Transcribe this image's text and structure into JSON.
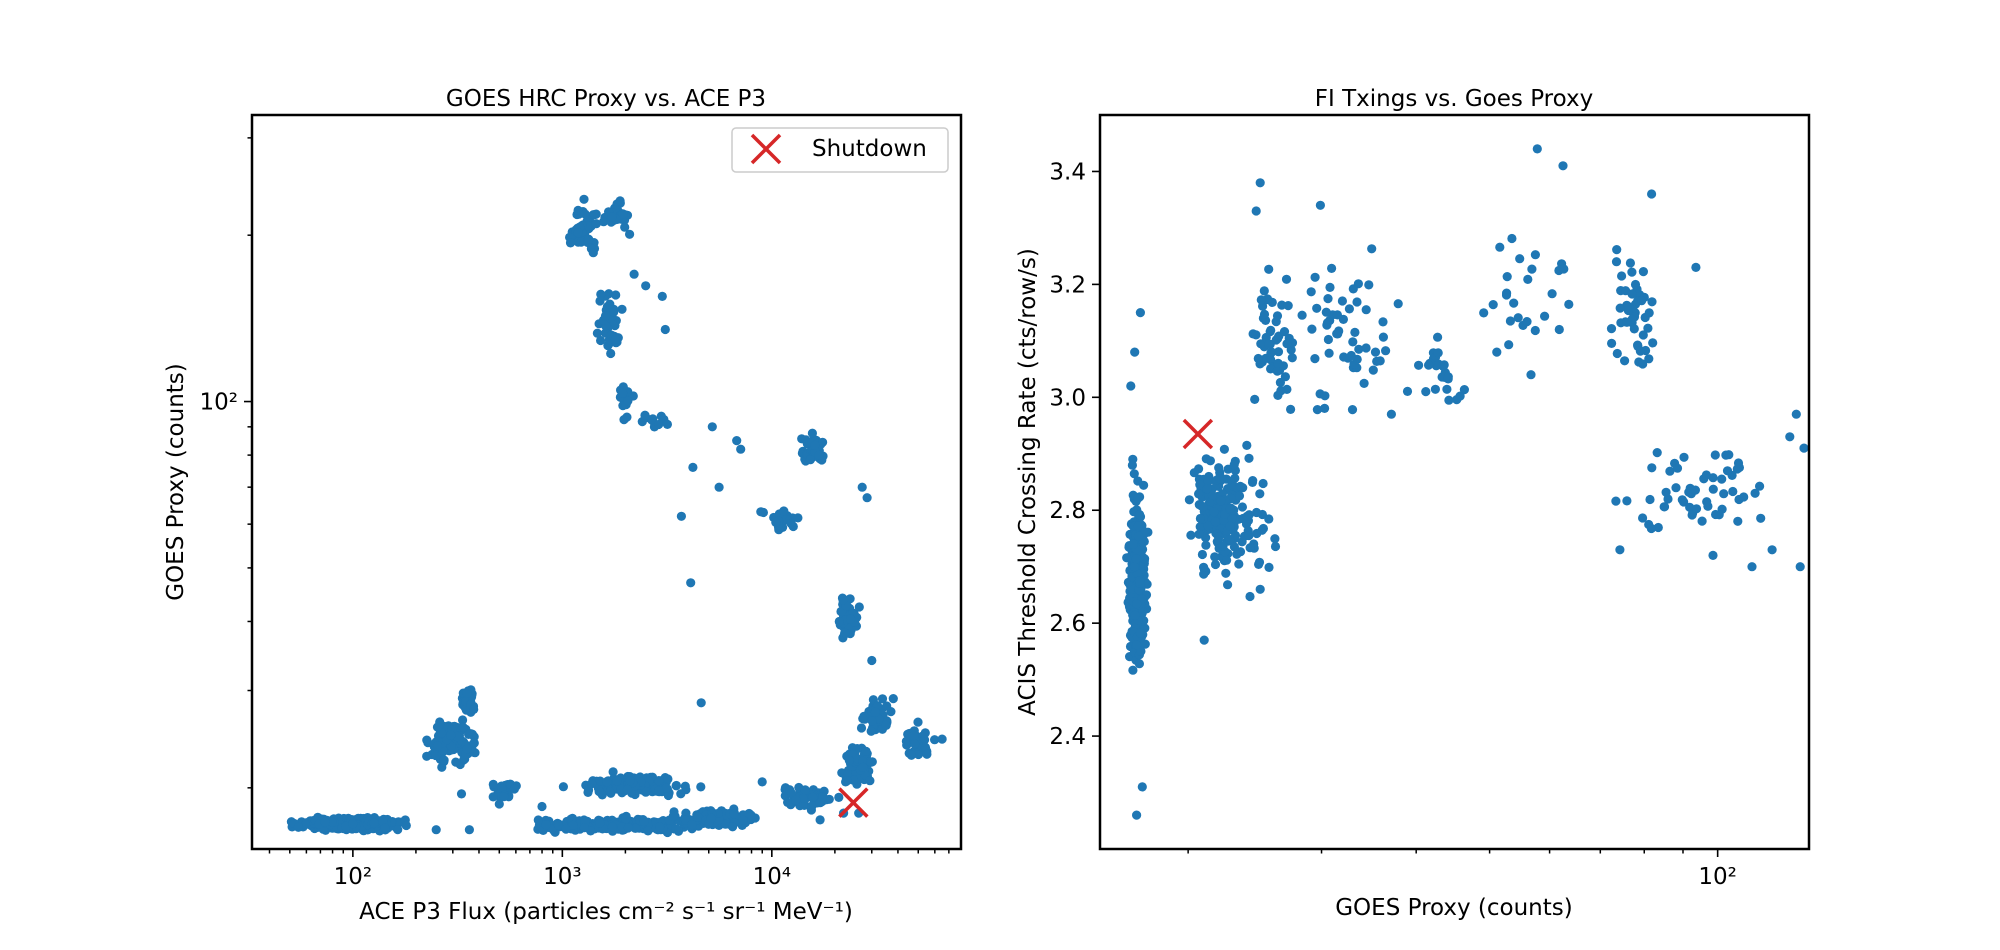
{
  "chart_data": [
    {
      "type": "scatter",
      "title": "GOES HRC Proxy vs. ACE P3",
      "xlabel": "ACE P3 Flux (particles cm⁻² s⁻¹ sr⁻¹ MeV⁻¹)",
      "ylabel": "GOES Proxy (counts)",
      "xscale": "log",
      "yscale": "log",
      "xlim": [
        33,
        80000
      ],
      "ylim": [
        15.5,
        330
      ],
      "xticks": [
        {
          "value": 100,
          "label": "10²"
        },
        {
          "value": 1000,
          "label": "10³"
        },
        {
          "value": 10000,
          "label": "10⁴"
        }
      ],
      "yticks": [
        {
          "value": 100,
          "label": "10²"
        }
      ],
      "grid": false,
      "legend": {
        "placement": "top-right",
        "entries": [
          "Shutdown"
        ]
      },
      "colors": {
        "points": "#1f77b4",
        "shutdown": "#d62728"
      },
      "series": [
        {
          "marker": "dot",
          "clusters": [
            {
              "x": [
                45,
                210
              ],
              "y": [
                16.6,
                17.8
              ],
              "n": 420
            },
            {
              "x": [
                210,
                420
              ],
              "y": [
                21,
                28
              ],
              "n": 110
            },
            {
              "x": [
                320,
                400
              ],
              "y": [
                26,
                32
              ],
              "n": 35
            },
            {
              "x": [
                400,
                700
              ],
              "y": [
                18.5,
                21
              ],
              "n": 20
            },
            {
              "x": [
                520,
                7000
              ],
              "y": [
                16.5,
                17.8
              ],
              "n": 260
            },
            {
              "x": [
                3000,
                10000
              ],
              "y": [
                16.8,
                18.5
              ],
              "n": 140
            },
            {
              "x": [
                900,
                5000
              ],
              "y": [
                19,
                21.5
              ],
              "n": 150
            },
            {
              "x": [
                10000,
                22000
              ],
              "y": [
                18,
                20.5
              ],
              "n": 60
            },
            {
              "x": [
                20000,
                33000
              ],
              "y": [
                19.5,
                25
              ],
              "n": 90
            },
            {
              "x": [
                24000,
                40000
              ],
              "y": [
                24,
                30
              ],
              "n": 40
            },
            {
              "x": [
                40000,
                62000
              ],
              "y": [
                22,
                27
              ],
              "n": 35
            },
            {
              "x": [
                19000,
                28000
              ],
              "y": [
                36,
                46
              ],
              "n": 50
            },
            {
              "x": [
                13000,
                19000
              ],
              "y": [
                75,
                90
              ],
              "n": 45
            },
            {
              "x": [
                8000,
                15000
              ],
              "y": [
                57,
                66
              ],
              "n": 20
            },
            {
              "x": [
                1000,
                1600
              ],
              "y": [
                175,
                240
              ],
              "n": 55
            },
            {
              "x": [
                1500,
                2200
              ],
              "y": [
                200,
                240
              ],
              "n": 30
            },
            {
              "x": [
                1400,
                2000
              ],
              "y": [
                115,
                165
              ],
              "n": 45
            },
            {
              "x": [
                1800,
                2200
              ],
              "y": [
                90,
                112
              ],
              "n": 22
            },
            {
              "x": [
                2300,
                3200
              ],
              "y": [
                88,
                98
              ],
              "n": 12
            }
          ],
          "points": [
            [
              3000,
              155
            ],
            [
              2200,
              170
            ],
            [
              2500,
              162
            ],
            [
              3100,
              135
            ],
            [
              5200,
              90
            ],
            [
              6800,
              85
            ],
            [
              7100,
              82
            ],
            [
              5600,
              70
            ],
            [
              4200,
              76
            ],
            [
              3700,
              62
            ],
            [
              4100,
              47
            ],
            [
              4600,
              28.5
            ],
            [
              27000,
              70
            ],
            [
              28500,
              67
            ],
            [
              21000,
              40
            ],
            [
              30000,
              34
            ],
            [
              38000,
              29
            ],
            [
              17000,
              17.5
            ],
            [
              22000,
              18
            ],
            [
              26000,
              18
            ],
            [
              13000,
              19
            ],
            [
              6500,
              17
            ],
            [
              9000,
              20.5
            ],
            [
              800,
              18.5
            ],
            [
              360,
              16.8
            ],
            [
              250,
              16.8
            ],
            [
              330,
              19.5
            ],
            [
              500,
              18.7
            ],
            [
              65000,
              24.5
            ],
            [
              55000,
              23
            ]
          ]
        },
        {
          "name": "Shutdown",
          "marker": "x",
          "points": [
            [
              24500,
              18.8
            ]
          ]
        }
      ]
    },
    {
      "type": "scatter",
      "title": "FI Txings vs. Goes Proxy",
      "xlabel": "GOES Proxy (counts)",
      "ylabel": "ACIS Threshold Crossing Rate (cts/row/s)",
      "xscale": "log",
      "yscale": "linear",
      "xlim": [
        15.3,
        132
      ],
      "ylim": [
        2.2,
        3.5
      ],
      "xticks": [
        {
          "value": 100,
          "label": "10²"
        }
      ],
      "yticks": [
        {
          "value": 2.4,
          "label": "2.4"
        },
        {
          "value": 2.6,
          "label": "2.6"
        },
        {
          "value": 2.8,
          "label": "2.8"
        },
        {
          "value": 3.0,
          "label": "3.0"
        },
        {
          "value": 3.2,
          "label": "3.2"
        },
        {
          "value": 3.4,
          "label": "3.4"
        }
      ],
      "grid": false,
      "colors": {
        "points": "#1f77b4",
        "shutdown": "#d62728"
      },
      "series": [
        {
          "marker": "dot",
          "clusters": [
            {
              "x": [
                16.5,
                17.8
              ],
              "y": [
                2.48,
                2.88
              ],
              "n": 320
            },
            {
              "x": [
                16.7,
                17.6
              ],
              "y": [
                2.4,
                3.0
              ],
              "n": 60
            },
            {
              "x": [
                19.5,
                24.5
              ],
              "y": [
                2.65,
                2.95
              ],
              "n": 110
            },
            {
              "x": [
                20,
                27
              ],
              "y": [
                2.6,
                2.98
              ],
              "n": 90
            },
            {
              "x": [
                23,
                29
              ],
              "y": [
                2.9,
                3.25
              ],
              "n": 55
            },
            {
              "x": [
                26,
                40
              ],
              "y": [
                2.92,
                3.3
              ],
              "n": 55
            },
            {
              "x": [
                38,
                48
              ],
              "y": [
                2.95,
                3.15
              ],
              "n": 25
            },
            {
              "x": [
                45,
                70
              ],
              "y": [
                3.05,
                3.35
              ],
              "n": 25
            },
            {
              "x": [
                70,
                85
              ],
              "y": [
                3.0,
                3.3
              ],
              "n": 50
            },
            {
              "x": [
                70,
                125
              ],
              "y": [
                2.72,
                2.95
              ],
              "n": 55
            }
          ],
          "points": [
            [
              17.1,
              2.26
            ],
            [
              17.4,
              2.31
            ],
            [
              17.3,
              3.15
            ],
            [
              17.0,
              3.08
            ],
            [
              16.8,
              3.02
            ],
            [
              24.9,
              3.38
            ],
            [
              24.6,
              3.33
            ],
            [
              29.9,
              3.34
            ],
            [
              57.8,
              3.44
            ],
            [
              62.5,
              3.41
            ],
            [
              81.8,
              3.36
            ],
            [
              93.6,
              3.23
            ],
            [
              56.7,
              3.04
            ],
            [
              51.1,
              3.08
            ],
            [
              74.3,
              2.73
            ],
            [
              111,
              2.7
            ],
            [
              118,
              2.73
            ],
            [
              124.5,
              2.93
            ],
            [
              127,
              2.97
            ],
            [
              130,
              2.91
            ],
            [
              128.5,
              2.7
            ],
            [
              98.6,
              2.72
            ],
            [
              21.0,
              2.57
            ],
            [
              24.9,
              2.66
            ],
            [
              37.1,
              2.97
            ]
          ]
        },
        {
          "name": "Shutdown",
          "marker": "x",
          "points": [
            [
              20.6,
              2.935
            ]
          ]
        }
      ]
    }
  ]
}
